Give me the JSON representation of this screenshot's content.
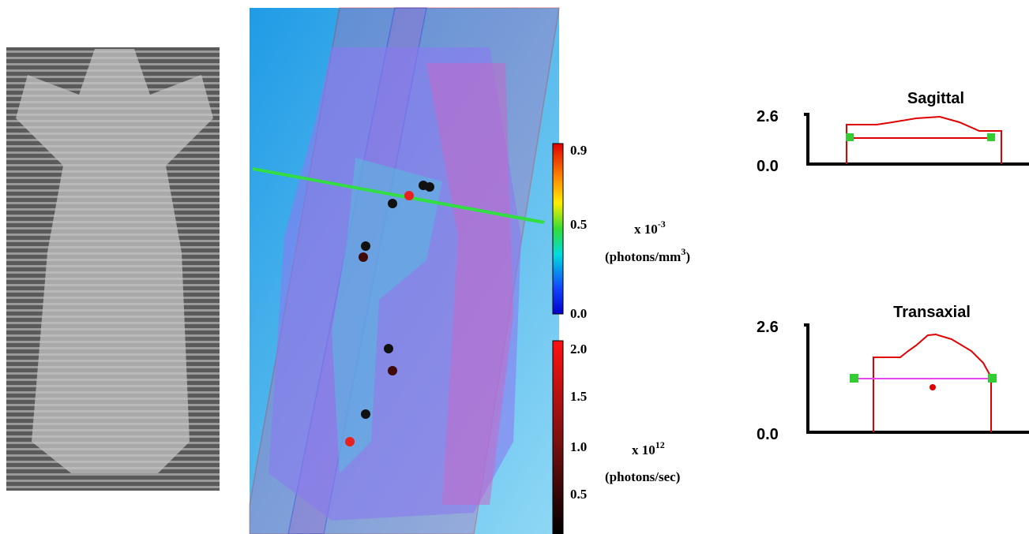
{
  "colorbars": [
    {
      "ticks": [
        "0.9",
        "0.5",
        "0.0"
      ],
      "scale_base": "x 10",
      "scale_exp": "-3",
      "unit_pre": "(photons/mm",
      "unit_exp": "3",
      "unit_post": ")"
    },
    {
      "ticks": [
        "2.0",
        "1.5",
        "1.0",
        "0.5"
      ],
      "scale_base": "x 10",
      "scale_exp": "12",
      "unit": "(photons/sec)"
    }
  ],
  "profiles": [
    {
      "title": "Sagittal",
      "ytick_top": "2.6",
      "ytick_bottom": "0.0"
    },
    {
      "title": "Transaxial",
      "ytick_top": "2.6",
      "ytick_bottom": "0.0"
    }
  ]
}
